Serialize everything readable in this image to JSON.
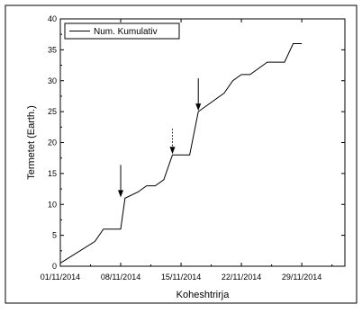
{
  "chart_data": {
    "type": "line",
    "xlabel": "Koheshtrirja",
    "ylabel": "Termetet (Earth.)",
    "xlim": [
      "2014-11-01",
      "2014-12-04"
    ],
    "ylim": [
      0,
      40
    ],
    "x_ticks": [
      {
        "date": "2014-11-01",
        "label": "01/11/2014"
      },
      {
        "date": "2014-11-08",
        "label": "08/11/2014"
      },
      {
        "date": "2014-11-15",
        "label": "15/11/2014"
      },
      {
        "date": "2014-11-22",
        "label": "22/11/2014"
      },
      {
        "date": "2014-11-29",
        "label": "29/11/2014"
      }
    ],
    "y_ticks": [
      0,
      5,
      10,
      15,
      20,
      25,
      30,
      35,
      40
    ],
    "grid": false,
    "legend": {
      "position": "top-left"
    },
    "series": [
      {
        "name": "Num. Kumulativ",
        "color": "#000000",
        "points": [
          {
            "x": "2014-11-01",
            "y": 0.5
          },
          {
            "x": "2014-11-05",
            "y": 4
          },
          {
            "x": "2014-11-06",
            "y": 6
          },
          {
            "x": "2014-11-08",
            "y": 6
          },
          {
            "x": "2014-11-08T12:00",
            "y": 11
          },
          {
            "x": "2014-11-10",
            "y": 12
          },
          {
            "x": "2014-11-11",
            "y": 13
          },
          {
            "x": "2014-11-12",
            "y": 13
          },
          {
            "x": "2014-11-13",
            "y": 14
          },
          {
            "x": "2014-11-14",
            "y": 18
          },
          {
            "x": "2014-11-16",
            "y": 18
          },
          {
            "x": "2014-11-17",
            "y": 25
          },
          {
            "x": "2014-11-20",
            "y": 28
          },
          {
            "x": "2014-11-21",
            "y": 30
          },
          {
            "x": "2014-11-22",
            "y": 31
          },
          {
            "x": "2014-11-23",
            "y": 31
          },
          {
            "x": "2014-11-25",
            "y": 33
          },
          {
            "x": "2014-11-27",
            "y": 33
          },
          {
            "x": "2014-11-28",
            "y": 36
          },
          {
            "x": "2014-11-29",
            "y": 36
          }
        ]
      }
    ],
    "annotations": [
      {
        "type": "arrow",
        "style": "solid",
        "x": "2014-11-08",
        "y": 11
      },
      {
        "type": "arrow",
        "style": "dotted",
        "x": "2014-11-14",
        "y": 18
      },
      {
        "type": "arrow",
        "style": "solid",
        "x": "2014-11-17",
        "y": 25
      }
    ]
  }
}
